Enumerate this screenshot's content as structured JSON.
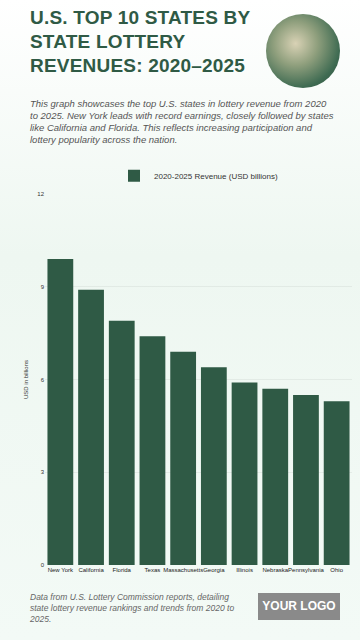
{
  "chart_data": {
    "type": "bar",
    "title": "U.S. TOP 10 STATES BY STATE LOTTERY REVENUES: 2020–2025",
    "subtitle": "This graph showcases the top U.S. states in lottery revenue from 2020 to 2025. New York leads with record earnings, closely followed by states like California and Florida. This reflects increasing participation and lottery popularity across the nation.",
    "y_label": "USD in billions",
    "categories": [
      "New York",
      "California",
      "Florida",
      "Texas",
      "Massachusetts",
      "Georgia",
      "Illinois",
      "Nebraska",
      "Pennsylvania",
      "Ohio"
    ],
    "series": [
      {
        "name": "2020-2025 Revenue (USD billions)",
        "color": "#2f5a45",
        "values": [
          9.9,
          8.9,
          7.9,
          7.4,
          6.9,
          6.4,
          5.9,
          5.7,
          5.5,
          5.3
        ]
      }
    ],
    "ylim": [
      0,
      12
    ],
    "yticks": [
      0,
      3,
      6,
      9,
      12
    ],
    "grid": true,
    "legend": "top",
    "annotations": [
      "Data from U.S. Lottery Commission reports, detailing state lottery revenue rankings and trends from 2020 to 2025.",
      "YOUR LOGO"
    ]
  }
}
